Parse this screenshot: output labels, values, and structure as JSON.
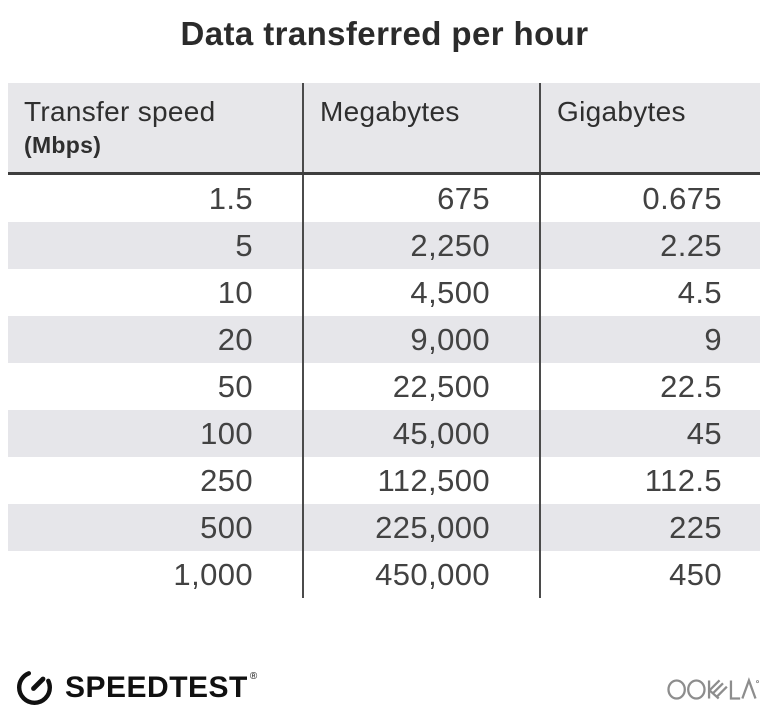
{
  "title": "Data transferred per hour",
  "table": {
    "columns": [
      {
        "label": "Transfer speed",
        "sublabel": "(Mbps)"
      },
      {
        "label": "Megabytes",
        "sublabel": ""
      },
      {
        "label": "Gigabytes",
        "sublabel": ""
      }
    ],
    "rows": [
      [
        "1.5",
        "675",
        "0.675"
      ],
      [
        "5",
        "2,250",
        "2.25"
      ],
      [
        "10",
        "4,500",
        "4.5"
      ],
      [
        "20",
        "9,000",
        "9"
      ],
      [
        "50",
        "22,500",
        "22.5"
      ],
      [
        "100",
        "45,000",
        "45"
      ],
      [
        "250",
        "112,500",
        "112.5"
      ],
      [
        "500",
        "225,000",
        "225"
      ],
      [
        "1,000",
        "450,000",
        "450"
      ]
    ]
  },
  "footer": {
    "speedtest_label": "SPEEDTEST",
    "speedtest_reg_mark": "®",
    "ookla_label": "OOKLA",
    "gauge_icon": "speedtest-gauge-icon",
    "ookla_icon": "ookla-logo"
  },
  "colors": {
    "header_bg": "#e7e7ea",
    "row_alt_bg": "#e6e6ea",
    "divider": "#4b4b4b",
    "header_rule": "#3e3e3e",
    "title_text": "#2b2b2b",
    "body_text": "#424242",
    "logo_black": "#101010",
    "ookla_gray": "#8d8d8d"
  },
  "chart_data": {
    "type": "table",
    "title": "Data transferred per hour",
    "columns": [
      "Transfer speed (Mbps)",
      "Megabytes",
      "Gigabytes"
    ],
    "rows": [
      [
        1.5,
        675,
        0.675
      ],
      [
        5,
        2250,
        2.25
      ],
      [
        10,
        4500,
        4.5
      ],
      [
        20,
        9000,
        9
      ],
      [
        50,
        22500,
        22.5
      ],
      [
        100,
        45000,
        45
      ],
      [
        250,
        112500,
        112.5
      ],
      [
        500,
        225000,
        225
      ],
      [
        1000,
        450000,
        450
      ]
    ]
  }
}
